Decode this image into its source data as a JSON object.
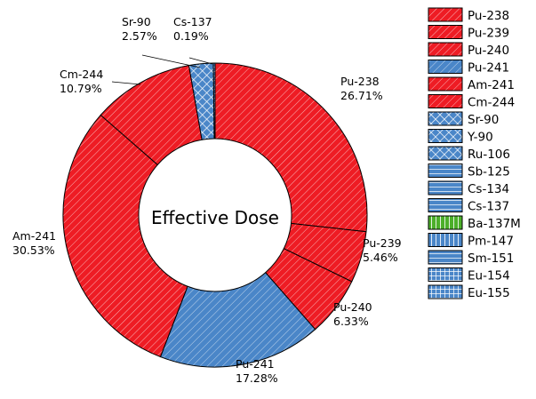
{
  "colors": {
    "red": "#ee1c24",
    "blue": "#4a86c8",
    "green": "#4caf2a"
  },
  "chart_data": {
    "type": "pie",
    "title": "",
    "center_label": "Effective Dose",
    "legend_position": "right",
    "slices": [
      {
        "name": "Cs-137",
        "value": 0.19,
        "percent_label": "0.19%",
        "color": "#4a86c8",
        "pattern": "hlines"
      },
      {
        "name": "Pu-238",
        "value": 26.71,
        "percent_label": "26.71%",
        "color": "#ee1c24",
        "pattern": "diag"
      },
      {
        "name": "Pu-239",
        "value": 5.46,
        "percent_label": "5.46%",
        "color": "#ee1c24",
        "pattern": "diag"
      },
      {
        "name": "Pu-240",
        "value": 6.33,
        "percent_label": "6.33%",
        "color": "#ee1c24",
        "pattern": "diag"
      },
      {
        "name": "Pu-241",
        "value": 17.28,
        "percent_label": "17.28%",
        "color": "#4a86c8",
        "pattern": "diag"
      },
      {
        "name": "Am-241",
        "value": 30.53,
        "percent_label": "30.53%",
        "color": "#ee1c24",
        "pattern": "diag"
      },
      {
        "name": "Cm-244",
        "value": 10.79,
        "percent_label": "10.79%",
        "color": "#ee1c24",
        "pattern": "diag"
      },
      {
        "name": "Sr-90",
        "value": 2.57,
        "percent_label": "2.57%",
        "color": "#4a86c8",
        "pattern": "cross"
      }
    ],
    "legend": [
      {
        "label": "Pu-238",
        "color": "#ee1c24",
        "pattern": "diag"
      },
      {
        "label": "Pu-239",
        "color": "#ee1c24",
        "pattern": "diag"
      },
      {
        "label": "Pu-240",
        "color": "#ee1c24",
        "pattern": "diag"
      },
      {
        "label": "Pu-241",
        "color": "#4a86c8",
        "pattern": "diag"
      },
      {
        "label": "Am-241",
        "color": "#ee1c24",
        "pattern": "diag"
      },
      {
        "label": "Cm-244",
        "color": "#ee1c24",
        "pattern": "diag"
      },
      {
        "label": "Sr-90",
        "color": "#4a86c8",
        "pattern": "cross"
      },
      {
        "label": "Y-90",
        "color": "#4a86c8",
        "pattern": "cross"
      },
      {
        "label": "Ru-106",
        "color": "#4a86c8",
        "pattern": "cross"
      },
      {
        "label": "Sb-125",
        "color": "#4a86c8",
        "pattern": "hlines"
      },
      {
        "label": "Cs-134",
        "color": "#4a86c8",
        "pattern": "hlines"
      },
      {
        "label": "Cs-137",
        "color": "#4a86c8",
        "pattern": "hlines"
      },
      {
        "label": "Ba-137M",
        "color": "#4caf2a",
        "pattern": "vlines"
      },
      {
        "label": "Pm-147",
        "color": "#4a86c8",
        "pattern": "vlines"
      },
      {
        "label": "Sm-151",
        "color": "#4a86c8",
        "pattern": "hlines"
      },
      {
        "label": "Eu-154",
        "color": "#4a86c8",
        "pattern": "grid"
      },
      {
        "label": "Eu-155",
        "color": "#4a86c8",
        "pattern": "grid"
      }
    ]
  }
}
